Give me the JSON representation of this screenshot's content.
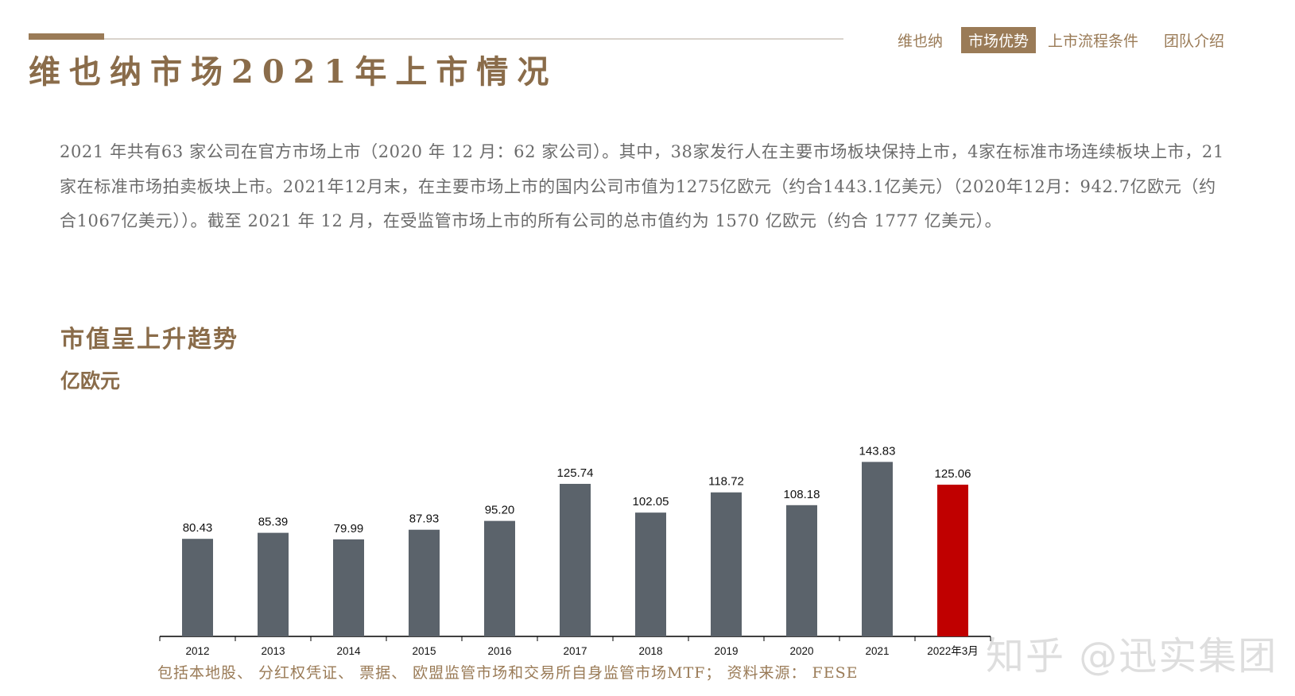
{
  "header": {
    "title": "维也纳市场2021年上市情况",
    "nav_tabs": [
      {
        "label": "维也纳",
        "active": false
      },
      {
        "label": "市场优势",
        "active": true
      },
      {
        "label": "上市流程条件",
        "active": false
      },
      {
        "label": "团队介绍",
        "active": false
      }
    ]
  },
  "intro_text": "2021 年共有63 家公司在官方市场上市（2020 年 12 月：62 家公司）。其中，38家发行人在主要市场板块保持上市，4家在标准市场连续板块上市，21家在标准市场拍卖板块上市。2021年12月末，在主要市场上市的国内公司市值为1275亿欧元（约合1443.1亿美元）（2020年12月：942.7亿欧元（约合1067亿美元））。截至 2021 年 12 月，在受监管市场上市的所有公司的总市值约为 1570 亿欧元（约合 1777 亿美元）。",
  "section_title": "市值呈上升趋势",
  "unit_label": "亿欧元",
  "footnote": "包括本地股、 分红权凭证、 票据、 欧盟监管市场和交易所自身监管市场MTF； 资料来源： FESE",
  "watermark": "知乎 @迅实集团",
  "colors": {
    "brand": "#9a7b57",
    "bar": "#5b636b",
    "highlight": "#c00000",
    "text": "#6b6b6b"
  },
  "chart_data": {
    "type": "bar",
    "title": "",
    "xlabel": "",
    "ylabel": "亿欧元",
    "categories": [
      "2012",
      "2013",
      "2014",
      "2015",
      "2016",
      "2017",
      "2018",
      "2019",
      "2020",
      "2021",
      "2022年3月"
    ],
    "values": [
      80.43,
      85.39,
      79.99,
      87.93,
      95.2,
      125.74,
      102.05,
      118.72,
      108.18,
      143.83,
      125.06
    ],
    "value_labels": [
      "80.43",
      "85.39",
      "79.99",
      "87.93",
      "95.20",
      "125.74",
      "102.05",
      "118.72",
      "108.18",
      "143.83",
      "125.06"
    ],
    "highlight_index": 10,
    "ylim": [
      0,
      150
    ],
    "grid": false,
    "legend": "none"
  }
}
